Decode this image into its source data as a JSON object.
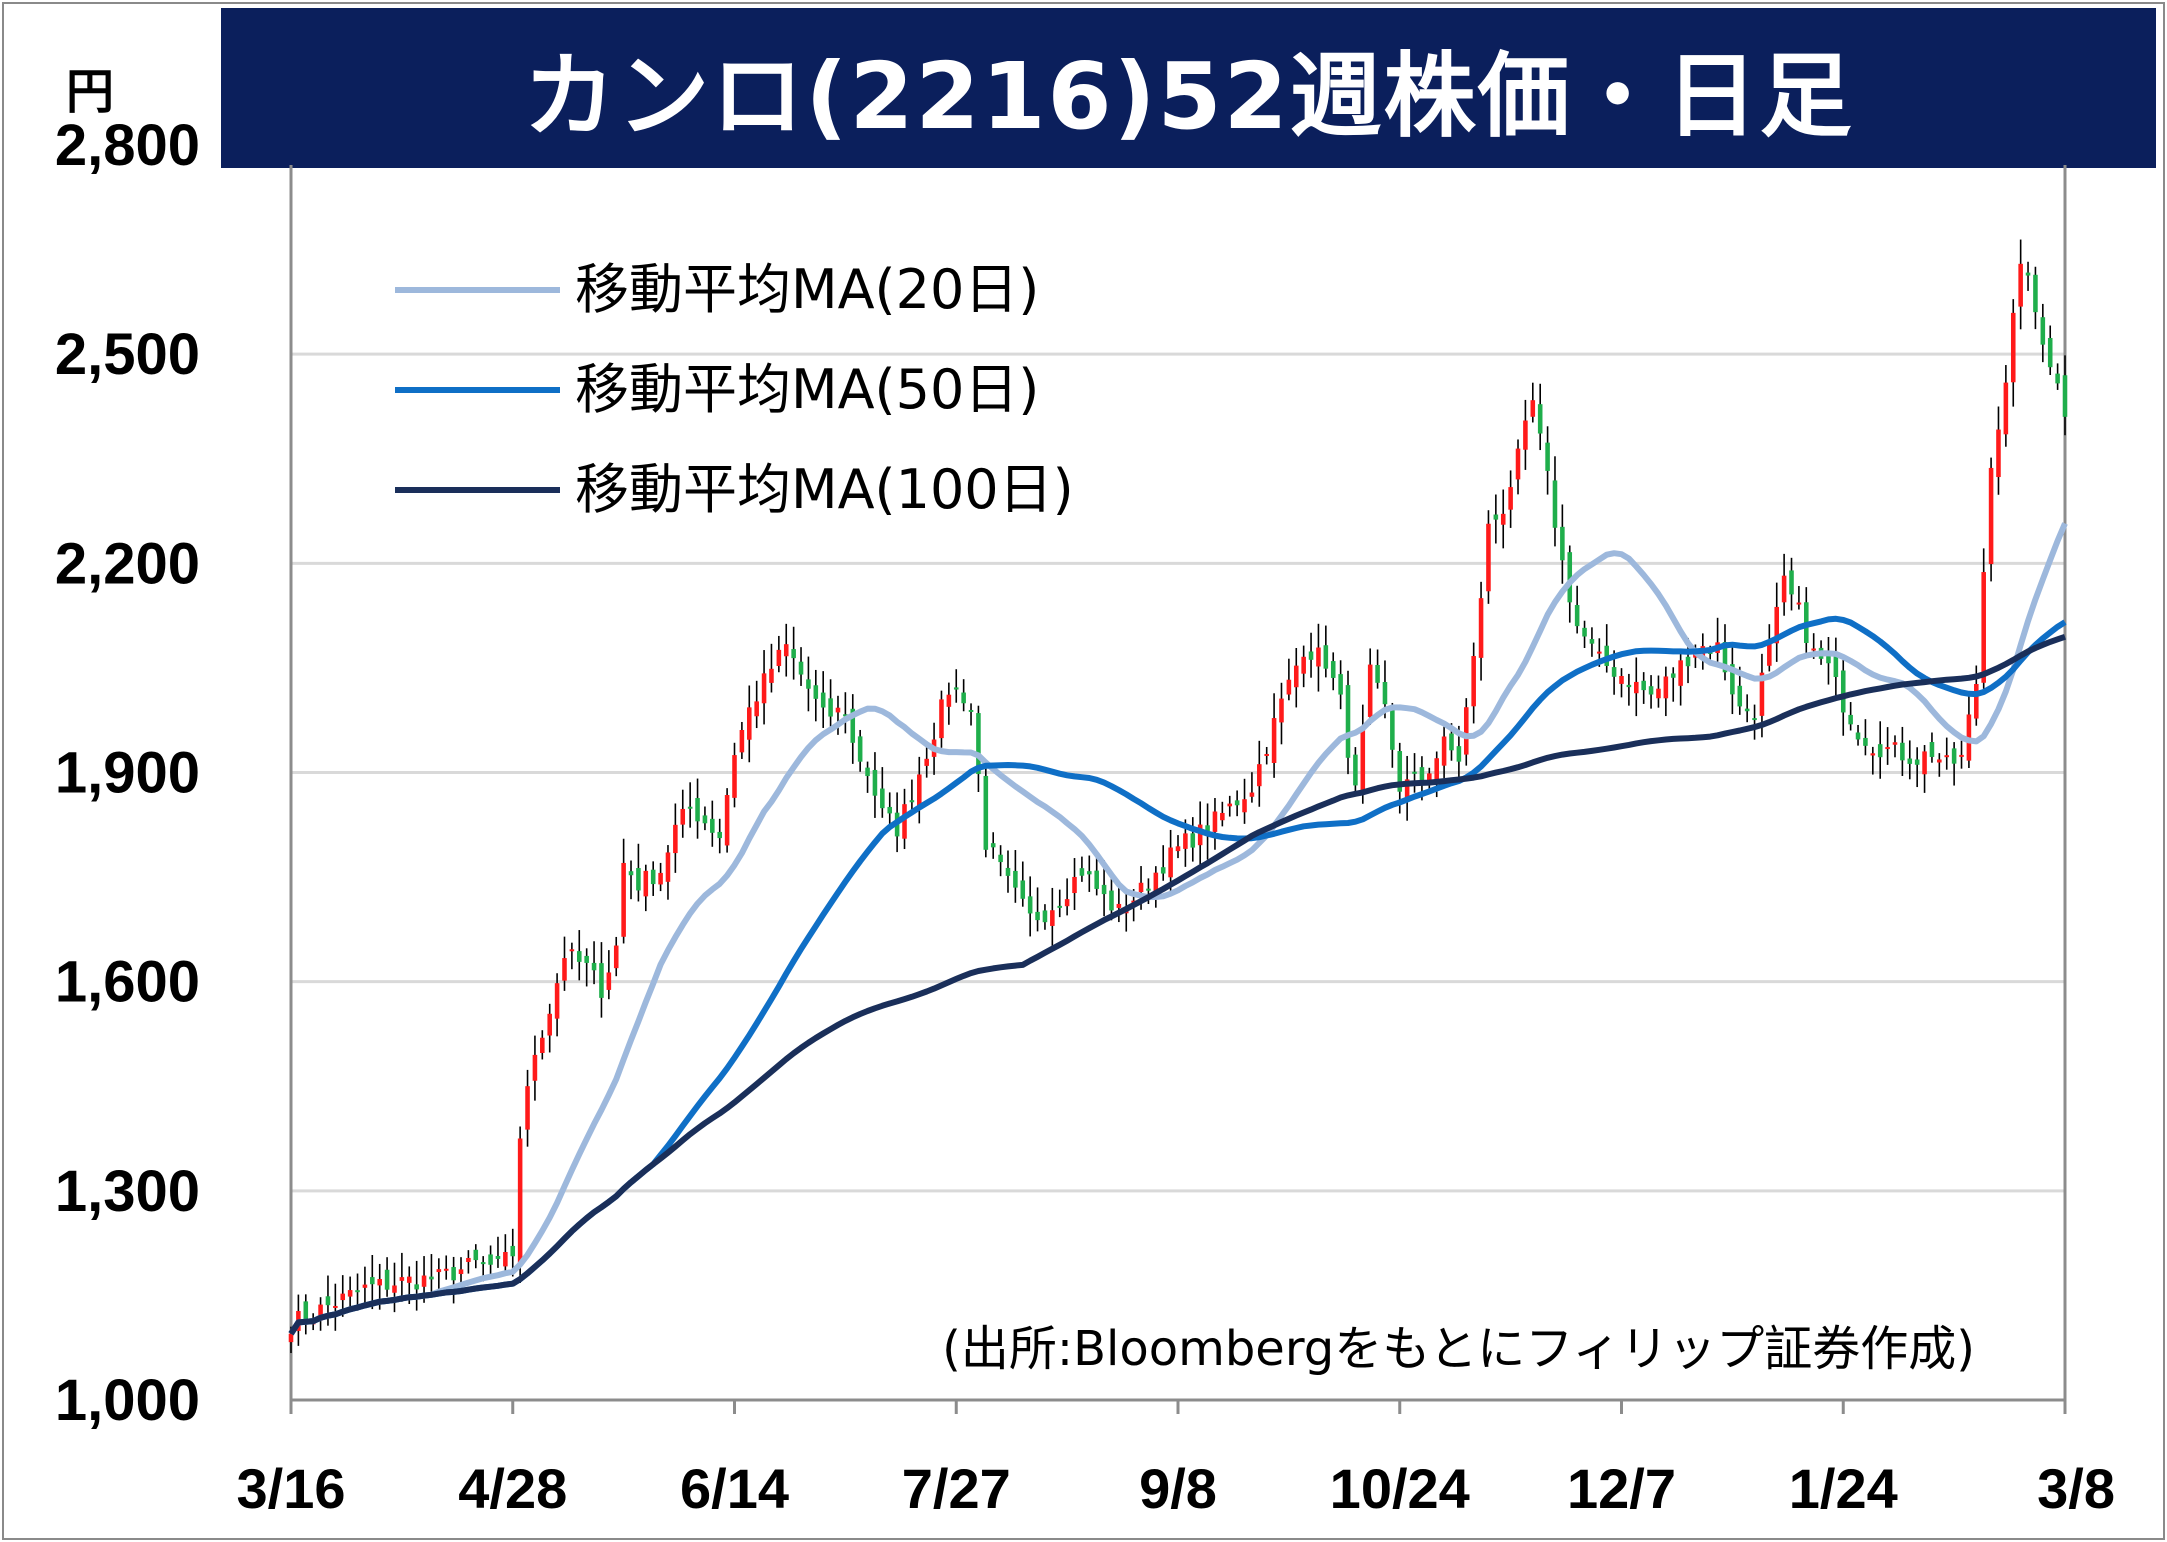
{
  "title": "カンロ(2216)52週株価・日足",
  "unit": "円",
  "source": "(出所:Bloombergをもとにフィリップ証券作成)",
  "colors": {
    "title_bg": "#0b1f5c",
    "up": "#ff1a1a",
    "down": "#1fae4b",
    "wick": "#000000",
    "grid": "#d9d9d9",
    "ma20": "#9db8dc",
    "ma50": "#0f6fc6",
    "ma100": "#1a2f5a"
  },
  "chart_data": {
    "type": "candlestick",
    "title": "カンロ(2216)52週株価・日足",
    "ylabel": "円",
    "ylim": [
      1000,
      2800
    ],
    "yticks": [
      "1,000",
      "1,300",
      "1,600",
      "1,900",
      "2,200",
      "2,500",
      "2,800"
    ],
    "ytick_values": [
      1000,
      1300,
      1600,
      1900,
      2200,
      2500,
      2800
    ],
    "xticks": [
      "3/16",
      "4/28",
      "6/14",
      "7/27",
      "9/8",
      "10/24",
      "12/7",
      "1/24",
      "3/8"
    ],
    "xtick_index": [
      0,
      30,
      60,
      90,
      120,
      150,
      180,
      210,
      240
    ],
    "n_days": 241,
    "grid": true,
    "legend_position": "top-left",
    "price_anchors": [
      [
        0,
        1110
      ],
      [
        5,
        1135
      ],
      [
        10,
        1160
      ],
      [
        15,
        1170
      ],
      [
        20,
        1175
      ],
      [
        25,
        1195
      ],
      [
        28,
        1190
      ],
      [
        30,
        1210
      ],
      [
        31,
        1380
      ],
      [
        33,
        1500
      ],
      [
        35,
        1560
      ],
      [
        37,
        1640
      ],
      [
        40,
        1620
      ],
      [
        42,
        1590
      ],
      [
        44,
        1650
      ],
      [
        45,
        1770
      ],
      [
        47,
        1740
      ],
      [
        50,
        1760
      ],
      [
        52,
        1820
      ],
      [
        54,
        1850
      ],
      [
        56,
        1830
      ],
      [
        58,
        1810
      ],
      [
        60,
        1930
      ],
      [
        62,
        1990
      ],
      [
        65,
        2050
      ],
      [
        67,
        2080
      ],
      [
        69,
        2040
      ],
      [
        72,
        1980
      ],
      [
        75,
        1990
      ],
      [
        76,
        1940
      ],
      [
        78,
        1900
      ],
      [
        80,
        1840
      ],
      [
        82,
        1820
      ],
      [
        84,
        1870
      ],
      [
        85,
        1900
      ],
      [
        87,
        1960
      ],
      [
        89,
        2020
      ],
      [
        91,
        2010
      ],
      [
        92,
        1990
      ],
      [
        94,
        1800
      ],
      [
        97,
        1740
      ],
      [
        100,
        1690
      ],
      [
        102,
        1700
      ],
      [
        104,
        1720
      ],
      [
        107,
        1760
      ],
      [
        110,
        1720
      ],
      [
        112,
        1700
      ],
      [
        115,
        1730
      ],
      [
        118,
        1770
      ],
      [
        121,
        1800
      ],
      [
        124,
        1820
      ],
      [
        127,
        1850
      ],
      [
        130,
        1880
      ],
      [
        134,
        2000
      ],
      [
        137,
        2080
      ],
      [
        140,
        2060
      ],
      [
        142,
        2000
      ],
      [
        144,
        1870
      ],
      [
        146,
        2040
      ],
      [
        148,
        1990
      ],
      [
        150,
        1880
      ],
      [
        153,
        1890
      ],
      [
        156,
        1940
      ],
      [
        158,
        1920
      ],
      [
        160,
        2060
      ],
      [
        162,
        2250
      ],
      [
        164,
        2280
      ],
      [
        166,
        2350
      ],
      [
        168,
        2430
      ],
      [
        170,
        2320
      ],
      [
        172,
        2200
      ],
      [
        174,
        2110
      ],
      [
        177,
        2060
      ],
      [
        180,
        2040
      ],
      [
        184,
        2010
      ],
      [
        187,
        2040
      ],
      [
        190,
        2080
      ],
      [
        193,
        2080
      ],
      [
        196,
        1990
      ],
      [
        198,
        1990
      ],
      [
        200,
        2080
      ],
      [
        202,
        2170
      ],
      [
        204,
        2130
      ],
      [
        206,
        2070
      ],
      [
        208,
        2050
      ],
      [
        210,
        2000
      ],
      [
        212,
        1960
      ],
      [
        214,
        1940
      ],
      [
        217,
        1930
      ],
      [
        220,
        1920
      ],
      [
        222,
        1930
      ],
      [
        224,
        1910
      ],
      [
        226,
        1920
      ],
      [
        228,
        2030
      ],
      [
        230,
        2350
      ],
      [
        232,
        2450
      ],
      [
        234,
        2640
      ],
      [
        236,
        2560
      ],
      [
        238,
        2490
      ],
      [
        240,
        2420
      ]
    ],
    "series": [
      {
        "name": "移動平均MA (20日)",
        "window": 20
      },
      {
        "name": "移動平均MA (50日)",
        "window": 50
      },
      {
        "name": "移動平均MA (100日)",
        "window": 100
      }
    ]
  },
  "legend": [
    {
      "label": "移動平均MA(20日)",
      "color_key": "ma20"
    },
    {
      "label": "移動平均MA(50日)",
      "color_key": "ma50"
    },
    {
      "label": "移動平均MA(100日)",
      "color_key": "ma100"
    }
  ]
}
